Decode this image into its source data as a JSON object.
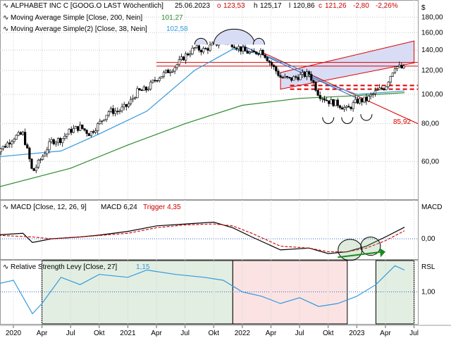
{
  "header": {
    "name": "ALPHABET INC C [GOOG.O LAST Wöchentlich]",
    "date": "25.06.2023",
    "open_lbl": "o",
    "open": "123,53",
    "high_lbl": "h",
    "high": "125,17",
    "low_lbl": "l",
    "low": "120,86",
    "close_lbl": "c",
    "close": "121,26",
    "change": "-2,80",
    "change_pct": "-2,26%",
    "currency": "$"
  },
  "indicators": {
    "sma200_label": "Moving Average Simple [Close, 200, Nein]",
    "sma200_value": "101,27",
    "sma38_label": "Moving Average Simple(2) [Close, 38, Nein]",
    "sma38_value": "102,58",
    "macd_label": "MACD [Close, 12, 26, 9]",
    "macd_value_label": "MACD 6,24",
    "trigger_label": "Trigger 4,35",
    "macd_axis_label": "MACD",
    "rsl_label": "Relative Strength Levy [Close, 27]",
    "rsl_value": "1,15",
    "rsl_axis_label": "RSL"
  },
  "annotations": {
    "target_label": "85,92"
  },
  "colors": {
    "sma200": "#2e8b2e",
    "sma38": "#3399dd",
    "macd": "#000000",
    "trigger": "#cc0000",
    "resistance": "#dd0000",
    "trend_blue": "#3355bb",
    "green_zone": "#e2eee2",
    "red_zone": "#fbe3e3",
    "up": "#00aa00",
    "down": "#dd0000"
  },
  "chart_data": [
    {
      "type": "candlestick",
      "title": "ALPHABET INC C [GOOG.O LAST Wöchentlich]",
      "y_scale": "log",
      "ylim": [
        45,
        205
      ],
      "yticks": [
        60,
        80,
        100,
        120,
        140,
        160,
        180
      ],
      "ytick_labels": [
        "60,00",
        "80,00",
        "100,00",
        "120,00",
        "140,00",
        "160,00",
        "180,00"
      ],
      "x_range": [
        "2019-11",
        "2023-08"
      ],
      "x_ticks": [
        {
          "label": "2020",
          "date": "2020-01"
        },
        {
          "label": "Apr",
          "date": "2020-04"
        },
        {
          "label": "Jul",
          "date": "2020-07"
        },
        {
          "label": "Okt",
          "date": "2020-10"
        },
        {
          "label": "2021",
          "date": "2021-01"
        },
        {
          "label": "Apr",
          "date": "2021-04"
        },
        {
          "label": "Jul",
          "date": "2021-07"
        },
        {
          "label": "Okt",
          "date": "2021-10"
        },
        {
          "label": "2022",
          "date": "2022-01"
        },
        {
          "label": "Apr",
          "date": "2022-04"
        },
        {
          "label": "Jul",
          "date": "2022-07"
        },
        {
          "label": "Okt",
          "date": "2022-10"
        },
        {
          "label": "2023",
          "date": "2023-01"
        },
        {
          "label": "Apr",
          "date": "2023-04"
        },
        {
          "label": "Jul",
          "date": "2023-07"
        }
      ],
      "close_path": [
        [
          "2019-11",
          65
        ],
        [
          "2019-12",
          67
        ],
        [
          "2020-01",
          72
        ],
        [
          "2020-02",
          74
        ],
        [
          "2020-03",
          55
        ],
        [
          "2020-04",
          62
        ],
        [
          "2020-05",
          70
        ],
        [
          "2020-06",
          71
        ],
        [
          "2020-07",
          76
        ],
        [
          "2020-08",
          78
        ],
        [
          "2020-09",
          74
        ],
        [
          "2020-10",
          80
        ],
        [
          "2020-11",
          88
        ],
        [
          "2020-12",
          88
        ],
        [
          "2021-01",
          92
        ],
        [
          "2021-02",
          102
        ],
        [
          "2021-03",
          104
        ],
        [
          "2021-04",
          113
        ],
        [
          "2021-05",
          118
        ],
        [
          "2021-06",
          124
        ],
        [
          "2021-07",
          134
        ],
        [
          "2021-08",
          142
        ],
        [
          "2021-09",
          140
        ],
        [
          "2021-10",
          146
        ],
        [
          "2021-11",
          150
        ],
        [
          "2021-12",
          147
        ],
        [
          "2022-01",
          140
        ],
        [
          "2022-02",
          136
        ],
        [
          "2022-03",
          140
        ],
        [
          "2022-04",
          126
        ],
        [
          "2022-05",
          114
        ],
        [
          "2022-06",
          112
        ],
        [
          "2022-07",
          115
        ],
        [
          "2022-08",
          117
        ],
        [
          "2022-09",
          100
        ],
        [
          "2022-10",
          95
        ],
        [
          "2022-11",
          93
        ],
        [
          "2022-12",
          89
        ],
        [
          "2023-01",
          95
        ],
        [
          "2023-02",
          96
        ],
        [
          "2023-03",
          102
        ],
        [
          "2023-04",
          106
        ],
        [
          "2023-05",
          124
        ],
        [
          "2023-06",
          121.26
        ]
      ],
      "series": [
        {
          "name": "Moving Average Simple [Close, 200, Nein]",
          "points": [
            [
              "2019-11",
              49
            ],
            [
              "2020-07",
              57
            ],
            [
              "2021-01",
              68
            ],
            [
              "2021-07",
              80
            ],
            [
              "2022-01",
              92
            ],
            [
              "2022-07",
              97
            ],
            [
              "2023-01",
              99
            ],
            [
              "2023-06",
              101.27
            ]
          ]
        },
        {
          "name": "Moving Average Simple(2) [Close, 38, Nein]",
          "points": [
            [
              "2019-11",
              62
            ],
            [
              "2020-06",
              65
            ],
            [
              "2020-10",
              74
            ],
            [
              "2021-03",
              88
            ],
            [
              "2021-08",
              120
            ],
            [
              "2021-12",
              141
            ],
            [
              "2022-03",
              136
            ],
            [
              "2022-07",
              121
            ],
            [
              "2022-10",
              108
            ],
            [
              "2023-01",
              100
            ],
            [
              "2023-06",
              102.58
            ]
          ]
        }
      ],
      "annotations": [
        {
          "kind": "horizontal",
          "value": 127.5,
          "style": "solid"
        },
        {
          "kind": "horizontal",
          "value": 124,
          "style": "solid"
        },
        {
          "kind": "horizontal",
          "value": 107,
          "style": "dashed"
        },
        {
          "kind": "horizontal",
          "value": 104,
          "style": "dashed"
        },
        {
          "kind": "label",
          "text": "85,92",
          "value": 85.92
        }
      ]
    },
    {
      "type": "line",
      "title": "MACD [Close, 12, 26, 9]",
      "ylim": [
        -11,
        21
      ],
      "yticks": [
        0
      ],
      "ytick_labels": [
        "0,00"
      ],
      "series": [
        {
          "name": "MACD",
          "value": 6.24,
          "points": [
            [
              "2019-11",
              2
            ],
            [
              "2020-02",
              3
            ],
            [
              "2020-03",
              -2
            ],
            [
              "2020-05",
              0
            ],
            [
              "2020-08",
              1
            ],
            [
              "2020-10",
              2
            ],
            [
              "2021-01",
              4
            ],
            [
              "2021-04",
              7
            ],
            [
              "2021-07",
              8
            ],
            [
              "2021-10",
              9
            ],
            [
              "2021-12",
              6
            ],
            [
              "2022-02",
              1
            ],
            [
              "2022-05",
              -6
            ],
            [
              "2022-08",
              -5
            ],
            [
              "2022-10",
              -8
            ],
            [
              "2022-12",
              -7
            ],
            [
              "2023-02",
              -4
            ],
            [
              "2023-04",
              1
            ],
            [
              "2023-06",
              6.24
            ]
          ]
        },
        {
          "name": "Trigger",
          "value": 4.35,
          "points": [
            [
              "2019-11",
              2
            ],
            [
              "2020-03",
              1
            ],
            [
              "2020-05",
              0
            ],
            [
              "2020-08",
              1
            ],
            [
              "2021-01",
              3
            ],
            [
              "2021-04",
              6
            ],
            [
              "2021-07",
              7.5
            ],
            [
              "2021-10",
              8
            ],
            [
              "2021-12",
              7
            ],
            [
              "2022-02",
              3
            ],
            [
              "2022-05",
              -4
            ],
            [
              "2022-08",
              -5
            ],
            [
              "2022-10",
              -7
            ],
            [
              "2022-12",
              -7
            ],
            [
              "2023-02",
              -5
            ],
            [
              "2023-04",
              -1
            ],
            [
              "2023-06",
              4.35
            ]
          ]
        }
      ]
    },
    {
      "type": "line",
      "title": "Relative Strength Levy [Close, 27]",
      "ylim": [
        0.78,
        1.22
      ],
      "yticks": [
        1.0
      ],
      "ytick_labels": [
        "1,00"
      ],
      "series": [
        {
          "name": "Relative Strength Levy",
          "value": 1.15,
          "points": [
            [
              "2019-11",
              1.05
            ],
            [
              "2020-01",
              1.08
            ],
            [
              "2020-03",
              0.85
            ],
            [
              "2020-04",
              0.92
            ],
            [
              "2020-06",
              1.1
            ],
            [
              "2020-08",
              1.05
            ],
            [
              "2020-10",
              1.12
            ],
            [
              "2021-01",
              1.1
            ],
            [
              "2021-03",
              1.15
            ],
            [
              "2021-06",
              1.12
            ],
            [
              "2021-09",
              1.1
            ],
            [
              "2021-11",
              1.08
            ],
            [
              "2022-01",
              1.0
            ],
            [
              "2022-03",
              0.97
            ],
            [
              "2022-05",
              0.92
            ],
            [
              "2022-07",
              0.96
            ],
            [
              "2022-09",
              0.9
            ],
            [
              "2022-11",
              0.92
            ],
            [
              "2023-01",
              0.97
            ],
            [
              "2023-03",
              1.05
            ],
            [
              "2023-05",
              1.18
            ],
            [
              "2023-06",
              1.15
            ]
          ]
        }
      ],
      "zones": [
        {
          "from": "2020-04",
          "to": "2021-12",
          "color": "green"
        },
        {
          "from": "2021-12",
          "to": "2022-12",
          "color": "red"
        },
        {
          "from": "2023-03",
          "to": "2023-07",
          "color": "green"
        }
      ]
    }
  ]
}
